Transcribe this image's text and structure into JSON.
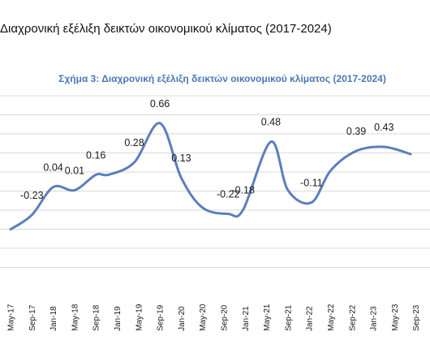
{
  "page": {
    "title": "Διαχρονική εξέλιξη δεικτών οικονομικού κλίματος (2017-2024)"
  },
  "colors": {
    "line": "#5b7fbc",
    "title": "#4a78b8",
    "grid": "#d9d9d9"
  },
  "chart_data": {
    "type": "line",
    "title": "Σχήμα 3: Διαχρονική εξέλιξη δεικτών οικονομικού κλίματος (2017-2024)",
    "xlabel": "",
    "ylabel": "",
    "categories": [
      "May-17",
      "Sep-17",
      "Jan-18",
      "May-18",
      "Sep-18",
      "Jan-19",
      "May-19",
      "Sep-19",
      "Jan-20",
      "May-20",
      "Sep-20",
      "Jan-21",
      "May-21",
      "Sep-21",
      "Jan-22",
      "May-22",
      "Sep-22",
      "Jan-23",
      "May-23",
      "Sep-23"
    ],
    "grid": true,
    "ylim": [
      -0.9,
      0.95
    ],
    "series": [
      {
        "values": [
          -0.37,
          -0.23,
          0.04,
          0.01,
          0.16,
          0.16,
          0.28,
          0.66,
          0.13,
          -0.16,
          -0.22,
          -0.18,
          0.48,
          0.01,
          -0.11,
          0.2,
          0.39,
          0.43,
          0.36
        ],
        "x": [
          0.0,
          1.0,
          2.0,
          3.0,
          4.0,
          4.6,
          5.8,
          7.0,
          8.0,
          9.0,
          10.2,
          10.9,
          12.2,
          13.0,
          14.1,
          15.0,
          16.2,
          17.5,
          18.75
        ],
        "labels": [
          "",
          "-0.23",
          "0.04",
          "0.01",
          "0.16",
          "",
          "0.28",
          "0.66",
          "0.13",
          "",
          "-0.22",
          "-0.18",
          "0.48",
          "",
          "-0.11",
          "",
          "0.39",
          "0.43",
          ""
        ]
      }
    ]
  }
}
